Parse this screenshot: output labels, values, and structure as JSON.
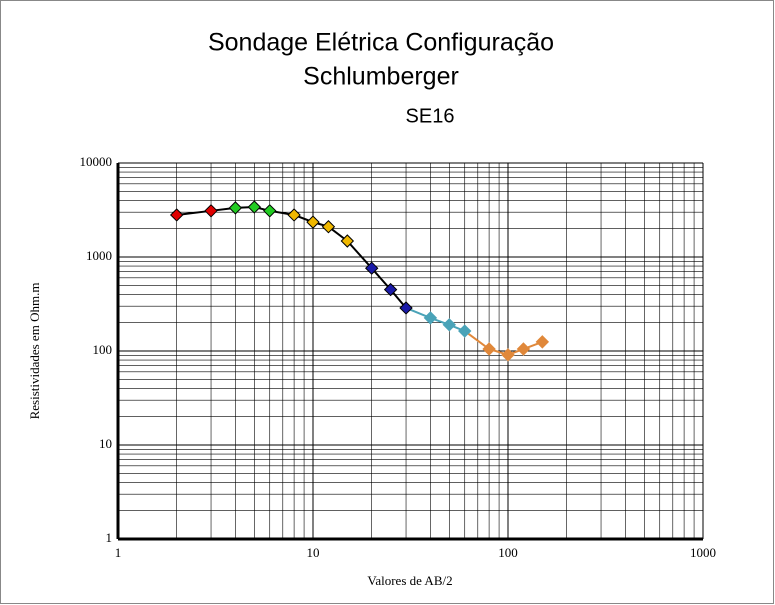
{
  "chart_data": {
    "type": "line",
    "title": "Sondage Elétrica Configuração",
    "subtitle": "Schlumberger",
    "annotation": "SE16",
    "x_label": "Valores de AB/2",
    "y_label": "Resistividades  em Ohm.m",
    "x_scale": "log",
    "y_scale": "log",
    "grid": true,
    "xlim": [
      1,
      1000
    ],
    "xticks": [
      1,
      10,
      100,
      1000
    ],
    "ylim": [
      1,
      10000
    ],
    "yticks": [
      1,
      10,
      100,
      1000,
      10000
    ],
    "series": [
      {
        "color": "#e00000",
        "line_color": "#000000",
        "x": [
          2,
          3
        ],
        "values": [
          2800,
          3100
        ]
      },
      {
        "color": "#22cc22",
        "line_color": "#000000",
        "x": [
          4,
          5,
          6
        ],
        "values": [
          3330,
          3400,
          3100
        ]
      },
      {
        "color": "#f0b800",
        "line_color": "#000000",
        "x": [
          8,
          10,
          12,
          15
        ],
        "values": [
          2800,
          2350,
          2100,
          1480
        ]
      },
      {
        "color": "#1a1aa8",
        "line_color": "#000000",
        "x": [
          20,
          25,
          30
        ],
        "values": [
          760,
          450,
          287
        ]
      },
      {
        "color": "#4aa3b8",
        "line_color": "#4aa3b8",
        "x": [
          40,
          50,
          60
        ],
        "values": [
          225,
          190,
          163
        ]
      },
      {
        "color": "#e0883a",
        "line_color": "#e0883a",
        "x": [
          80,
          100,
          120,
          150
        ],
        "values": [
          105,
          91,
          105,
          125
        ]
      }
    ]
  }
}
